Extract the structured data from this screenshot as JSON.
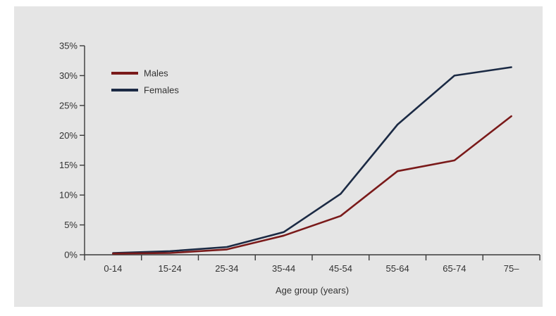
{
  "chart_data": {
    "type": "line",
    "title": "",
    "xlabel": "Age group (years)",
    "ylabel": "",
    "categories": [
      "0-14",
      "15-24",
      "25-34",
      "35-44",
      "45-54",
      "55-64",
      "65-74",
      "75–"
    ],
    "y_ticks": [
      "0%",
      "5%",
      "10%",
      "15%",
      "20%",
      "25%",
      "30%",
      "35%"
    ],
    "ylim": [
      0,
      35
    ],
    "legend_position": "top-left",
    "grid": false,
    "series": [
      {
        "name": "Males",
        "color": "#7a1a1a",
        "values": [
          0.2,
          0.3,
          0.9,
          3.2,
          6.5,
          14.0,
          15.8,
          23.2
        ]
      },
      {
        "name": "Females",
        "color": "#1b2a44",
        "values": [
          0.3,
          0.6,
          1.3,
          3.8,
          10.2,
          21.8,
          30.0,
          31.4
        ]
      }
    ]
  }
}
